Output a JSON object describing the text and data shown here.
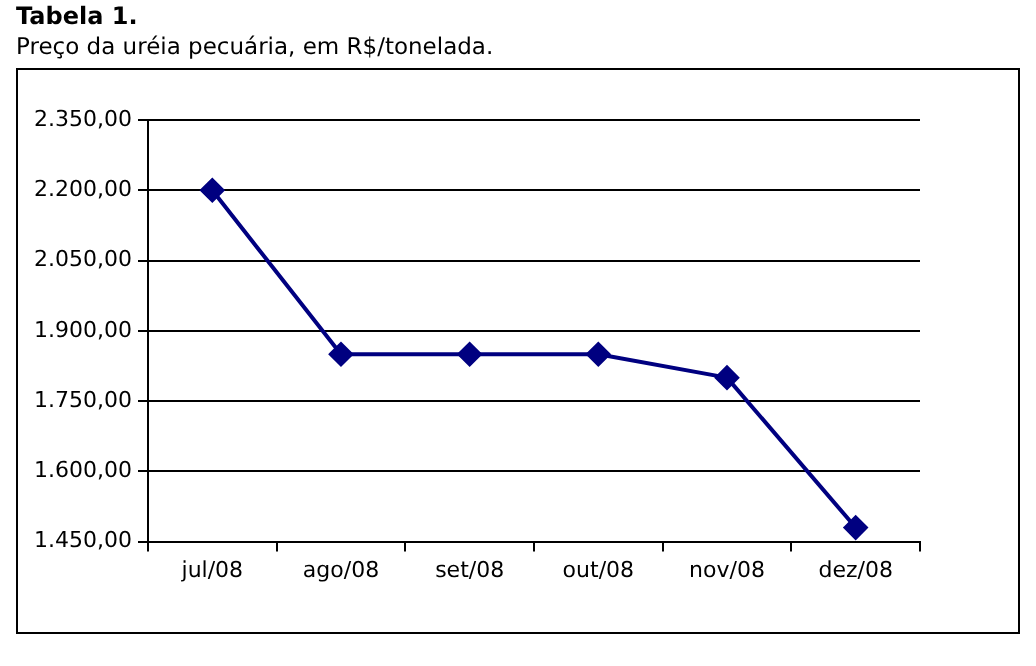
{
  "chart_data": {
    "type": "line",
    "title": "Tabela 1.",
    "subtitle": "Preço da uréia pecuária, em R$/tonelada.",
    "categories": [
      "jul/08",
      "ago/08",
      "set/08",
      "out/08",
      "nov/08",
      "dez/08"
    ],
    "series": [
      {
        "color": "#000080",
        "values": [
          2200,
          1850,
          1850,
          1850,
          1800,
          1480
        ]
      }
    ],
    "ylim": [
      1450,
      2350
    ],
    "yticks": [
      {
        "value": 1450,
        "label": "1.450,00"
      },
      {
        "value": 1600,
        "label": "1.600,00"
      },
      {
        "value": 1750,
        "label": "1.750,00"
      },
      {
        "value": 1900,
        "label": "1.900,00"
      },
      {
        "value": 2050,
        "label": "2.050,00"
      },
      {
        "value": 2200,
        "label": "2.200,00"
      },
      {
        "value": 2350,
        "label": "2.350,00"
      }
    ],
    "grid": "y",
    "legend": false,
    "marker": "diamond",
    "line_style": "solid"
  }
}
